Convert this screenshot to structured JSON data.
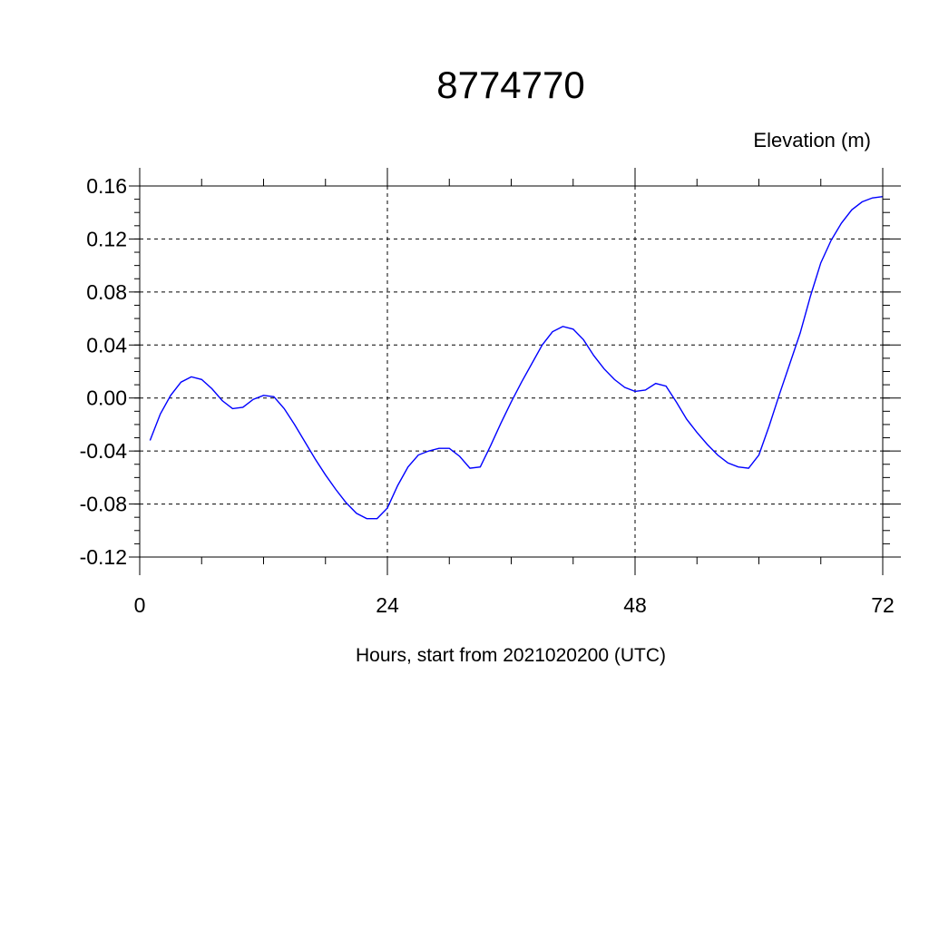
{
  "chart_data": {
    "type": "line",
    "title": "8774770",
    "ylabel_right": "Elevation (m)",
    "xlabel": "Hours, start from 2021020200 (UTC)",
    "xlim": [
      0,
      72
    ],
    "ylim": [
      -0.12,
      0.16
    ],
    "x_ticks": [
      0,
      24,
      48,
      72
    ],
    "x_tick_labels": [
      "0",
      "24",
      "48",
      "72"
    ],
    "y_ticks": [
      -0.12,
      -0.08,
      -0.04,
      0.0,
      0.04,
      0.08,
      0.12,
      0.16
    ],
    "y_tick_labels": [
      "-0.12",
      "-0.08",
      "-0.04",
      "0.00",
      "0.04",
      "0.08",
      "0.12",
      "0.16"
    ],
    "grid": true,
    "series_color": "#0000ff",
    "series": [
      {
        "x": [
          1,
          2,
          3,
          4,
          5,
          6,
          7,
          8,
          9,
          10,
          11,
          12,
          13,
          14,
          15,
          16,
          17,
          18,
          19,
          20,
          21,
          22,
          23,
          24,
          25,
          26,
          27,
          28,
          29,
          30,
          31,
          32,
          33,
          34,
          35,
          36,
          37,
          38,
          39,
          40,
          41,
          42,
          43,
          44,
          45,
          46,
          47,
          48,
          49,
          50,
          51,
          52,
          53,
          54,
          55,
          56,
          57,
          58,
          59,
          60,
          61,
          62,
          63,
          64,
          65,
          66,
          67,
          68,
          69,
          70,
          71,
          72
        ],
        "y": [
          -0.032,
          -0.012,
          0.002,
          0.012,
          0.016,
          0.014,
          0.007,
          -0.002,
          -0.008,
          -0.007,
          -0.001,
          0.002,
          0.001,
          -0.008,
          -0.02,
          -0.033,
          -0.046,
          -0.058,
          -0.069,
          -0.079,
          -0.087,
          -0.091,
          -0.091,
          -0.083,
          -0.066,
          -0.052,
          -0.043,
          -0.04,
          -0.038,
          -0.038,
          -0.044,
          -0.053,
          -0.052,
          -0.036,
          -0.019,
          -0.003,
          0.012,
          0.026,
          0.04,
          0.05,
          0.054,
          0.052,
          0.044,
          0.032,
          0.022,
          0.014,
          0.008,
          0.005,
          0.006,
          0.011,
          0.009,
          -0.003,
          -0.016,
          -0.026,
          -0.035,
          -0.043,
          -0.049,
          -0.052,
          -0.053,
          -0.043,
          -0.021,
          0.003,
          0.026,
          0.049,
          0.077,
          0.102,
          0.119,
          0.132,
          0.142,
          0.148,
          0.151,
          0.152
        ]
      }
    ]
  }
}
